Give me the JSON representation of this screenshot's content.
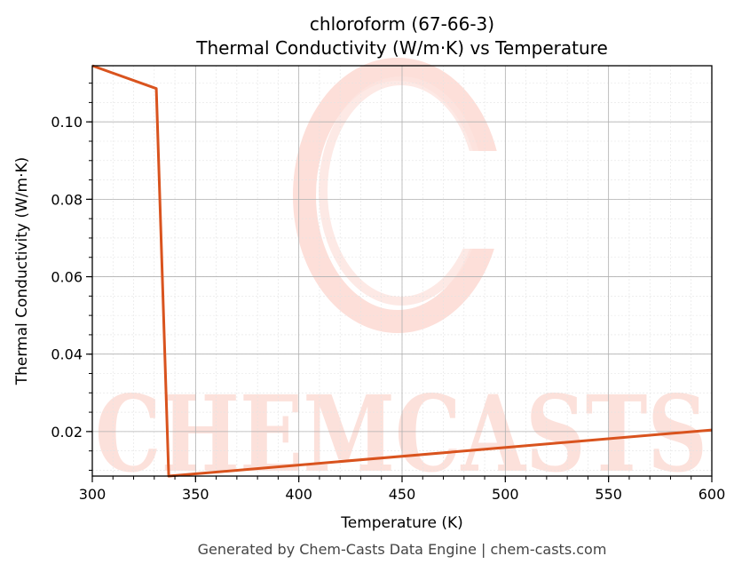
{
  "chart_data": {
    "type": "line",
    "title": "chloroform (67-66-3)",
    "subtitle": "Thermal Conductivity (W/m·K) vs Temperature",
    "xlabel": "Temperature (K)",
    "ylabel": "Thermal Conductivity (W/m·K)",
    "xlim": [
      300,
      600
    ],
    "ylim": [
      0.0085,
      0.1145
    ],
    "xticks": [
      300,
      350,
      400,
      450,
      500,
      550,
      600
    ],
    "yticks": [
      0.02,
      0.04,
      0.06,
      0.08,
      0.1
    ],
    "xtick_labels": [
      "300",
      "350",
      "400",
      "450",
      "500",
      "550",
      "600"
    ],
    "ytick_labels": [
      "0.02",
      "0.04",
      "0.06",
      "0.08",
      "0.10"
    ],
    "grid": true,
    "series": [
      {
        "color": "#d9531e",
        "x": [
          300,
          331,
          337,
          600
        ],
        "y": [
          0.1145,
          0.1086,
          0.0085,
          0.0204
        ]
      }
    ]
  },
  "watermark": "CHEMCASTS",
  "footer": "Generated by Chem-Casts Data Engine | chem-casts.com"
}
